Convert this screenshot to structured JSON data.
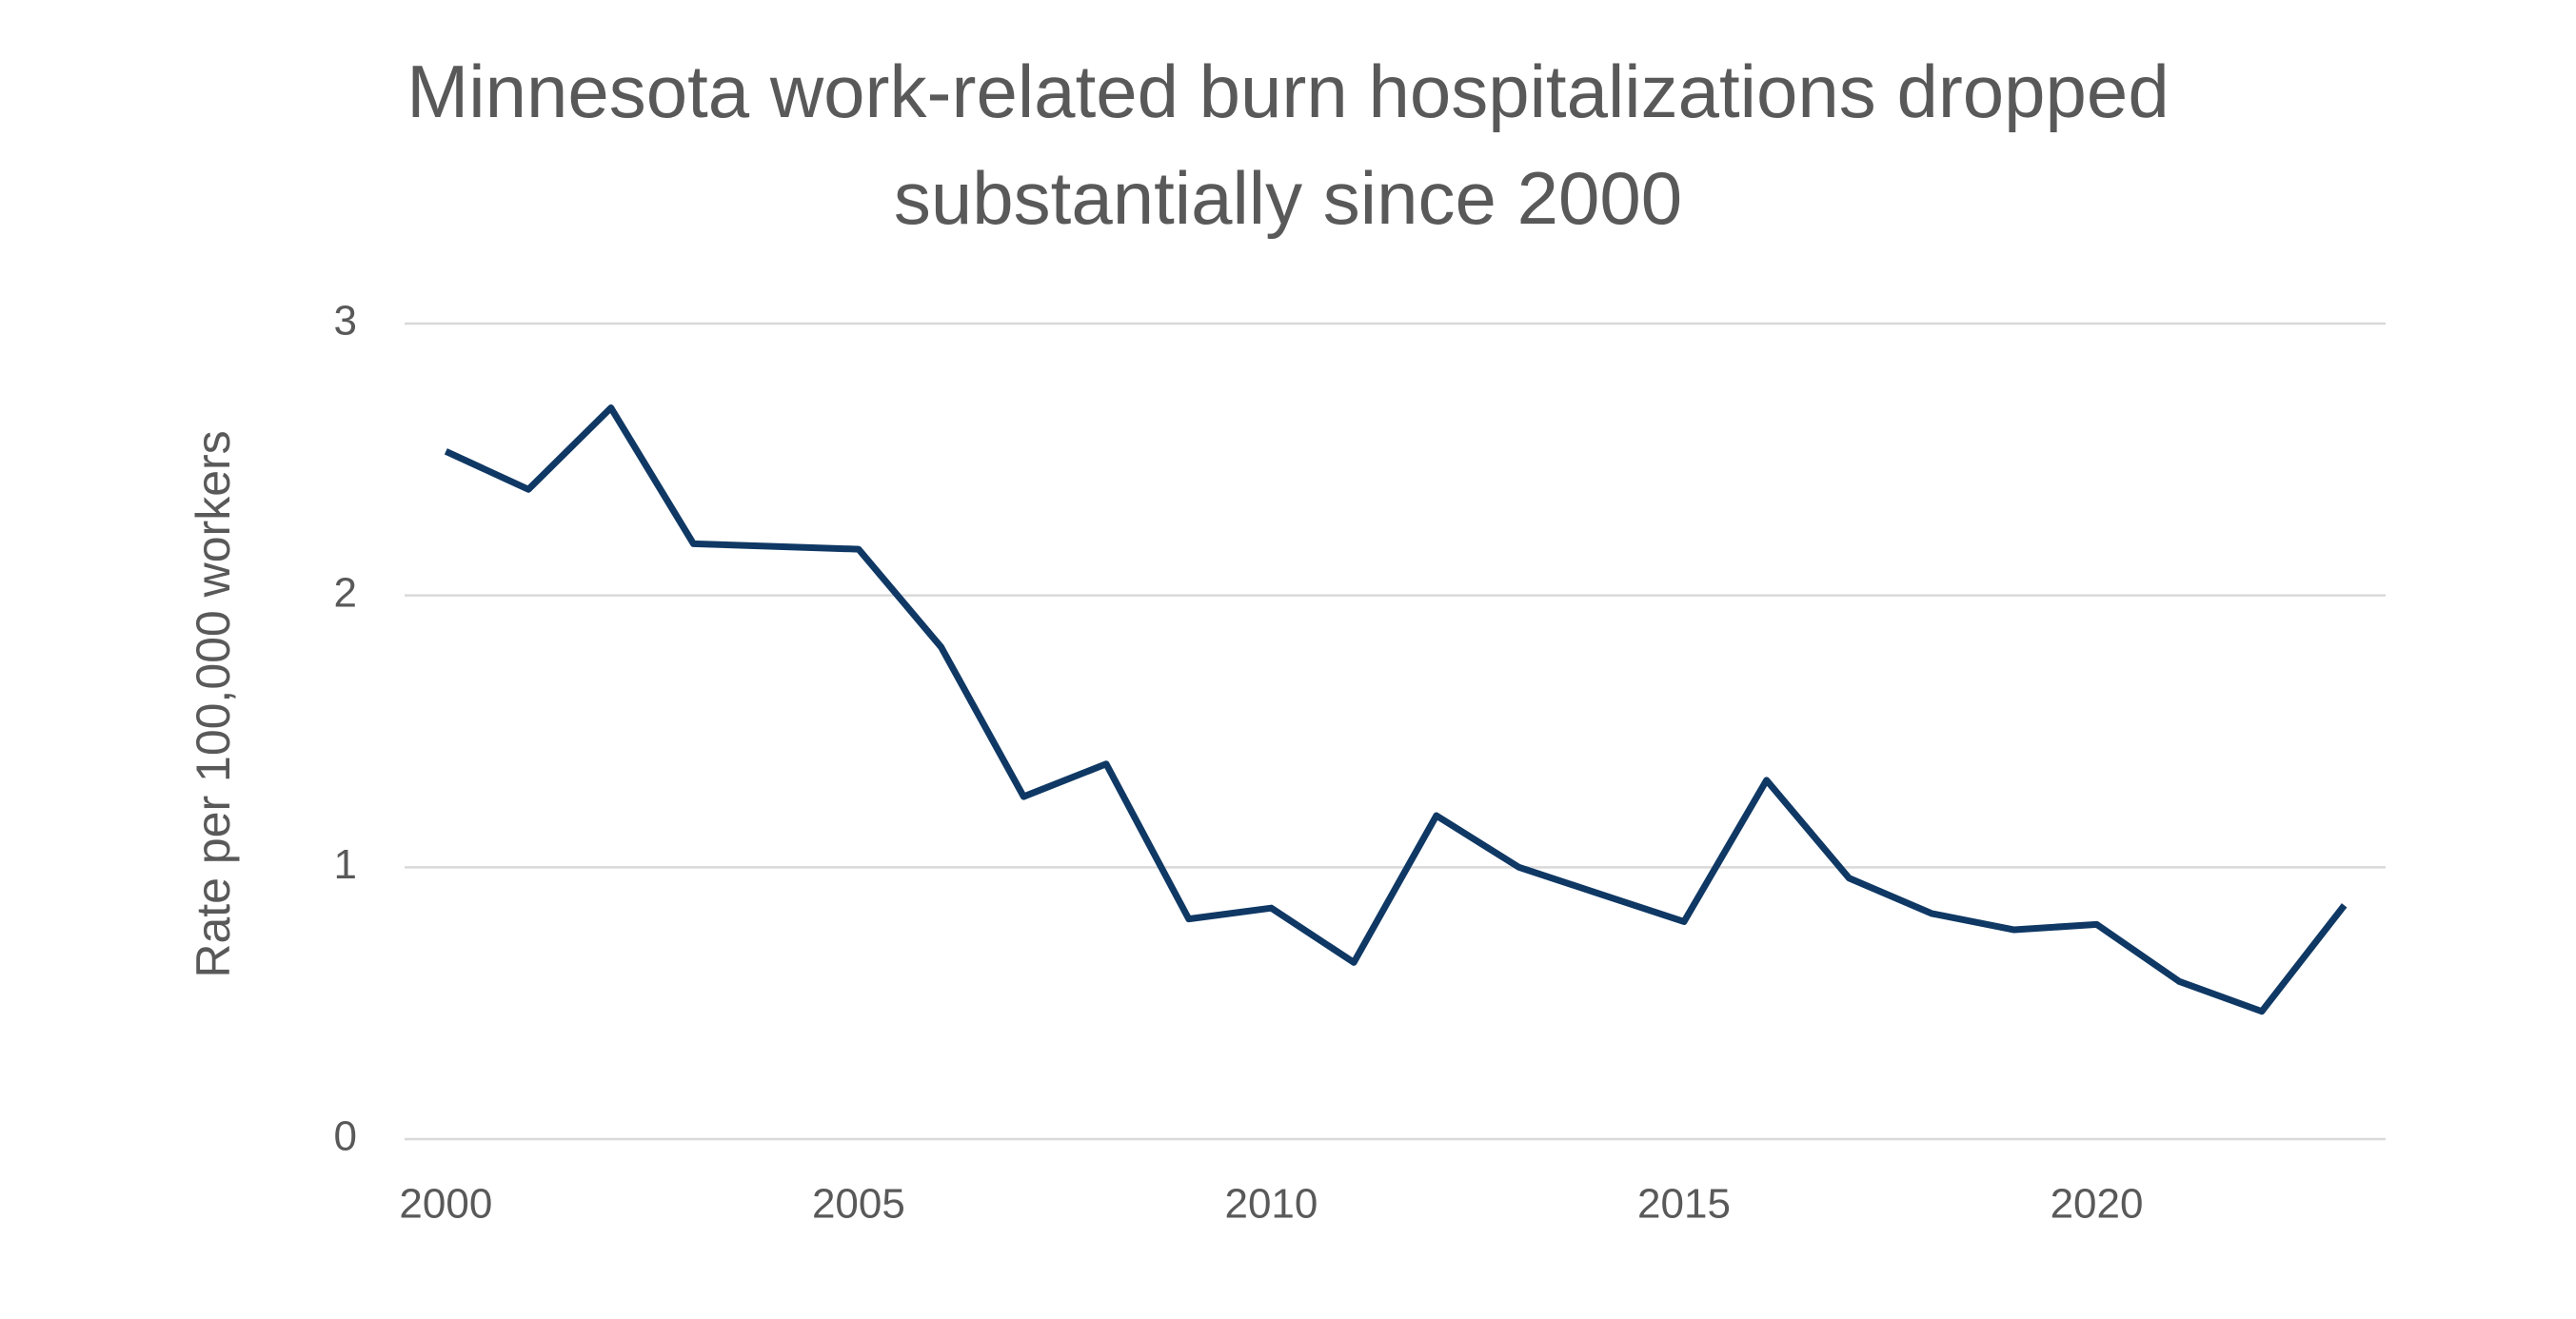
{
  "chart_data": {
    "type": "line",
    "title": "Minnesota work-related burn hospitalizations dropped substantially since 2000",
    "y_label": "Rate per 100,000 workers",
    "x": [
      2000,
      2001,
      2002,
      2003,
      2004,
      2005,
      2006,
      2007,
      2008,
      2009,
      2010,
      2011,
      2012,
      2013,
      2014,
      2015,
      2016,
      2017,
      2018,
      2019,
      2020,
      2021,
      2022,
      2023
    ],
    "series": [
      {
        "name": "Rate",
        "color": "#0f3864",
        "values": [
          2.53,
          2.39,
          2.69,
          2.19,
          2.18,
          2.17,
          1.81,
          1.26,
          1.38,
          0.81,
          0.85,
          0.65,
          1.19,
          1.0,
          0.9,
          0.8,
          1.32,
          0.96,
          0.83,
          0.77,
          0.79,
          0.58,
          0.47,
          0.86
        ]
      }
    ],
    "xlim": [
      1999.5,
      2023.5
    ],
    "xticks": [
      2000,
      2005,
      2010,
      2015,
      2020
    ],
    "ylim": [
      0,
      3
    ],
    "yticks": [
      0,
      1,
      2,
      3
    ],
    "grid": true
  }
}
